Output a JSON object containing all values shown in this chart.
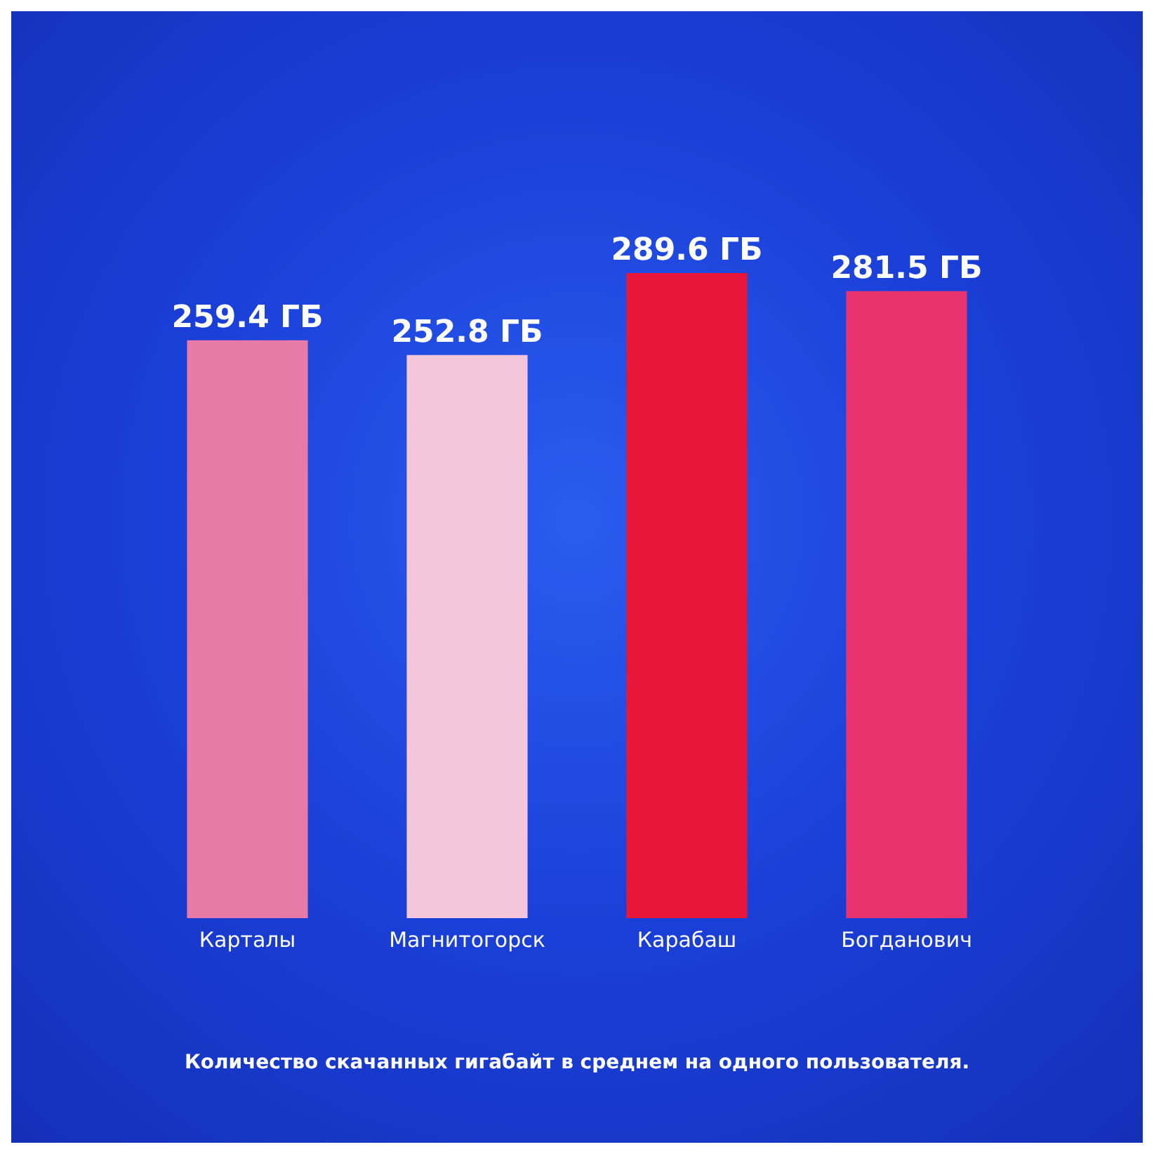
{
  "chart_data": {
    "type": "bar",
    "categories": [
      "Карталы",
      "Магнитогорск",
      "Карабаш",
      "Богданович"
    ],
    "values": [
      259.4,
      252.8,
      289.6,
      281.5
    ],
    "colors": [
      "#e87aa8",
      "#f4c6dc",
      "#e8173a",
      "#e8336e"
    ],
    "value_labels": [
      "259.4 ГБ",
      "252.8 ГБ",
      "289.6 ГБ",
      "281.5 ГБ"
    ],
    "annotations": [
      "Количество скачанных гигабайт в среднем на одного пользователя."
    ]
  }
}
